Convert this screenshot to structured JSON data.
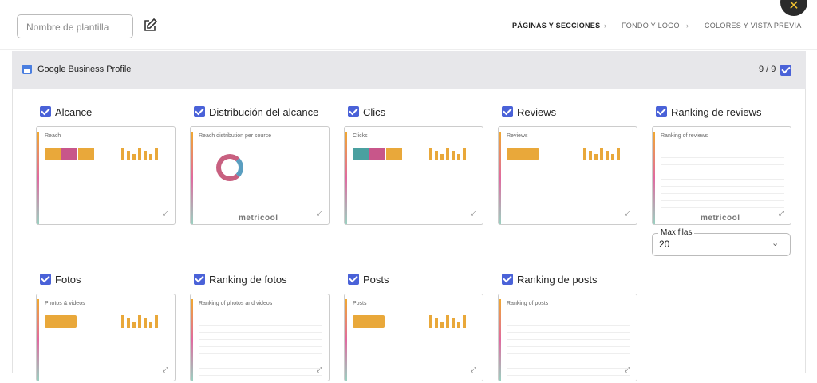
{
  "header": {
    "template_name_placeholder": "Nombre de plantilla",
    "steps": [
      "PÁGINAS Y SECCIONES",
      "FONDO Y LOGO",
      "COLORES Y VISTA PREVIA"
    ]
  },
  "section": {
    "title": "Google Business Profile",
    "count": "9 / 9"
  },
  "cards": [
    {
      "label": "Alcance",
      "preview_title": "Reach"
    },
    {
      "label": "Distribución del alcance",
      "preview_title": "Reach distribution per source"
    },
    {
      "label": "Clics",
      "preview_title": "Clicks"
    },
    {
      "label": "Reviews",
      "preview_title": "Reviews"
    },
    {
      "label": "Ranking de reviews",
      "preview_title": "Ranking of reviews"
    },
    {
      "label": "Fotos",
      "preview_title": "Photos & videos"
    },
    {
      "label": "Ranking de fotos",
      "preview_title": "Ranking of photos and videos"
    },
    {
      "label": "Posts",
      "preview_title": "Posts"
    },
    {
      "label": "Ranking de posts",
      "preview_title": "Ranking of posts"
    }
  ],
  "max_rows": {
    "label": "Max filas",
    "value": "20"
  },
  "watermark": "metricool"
}
